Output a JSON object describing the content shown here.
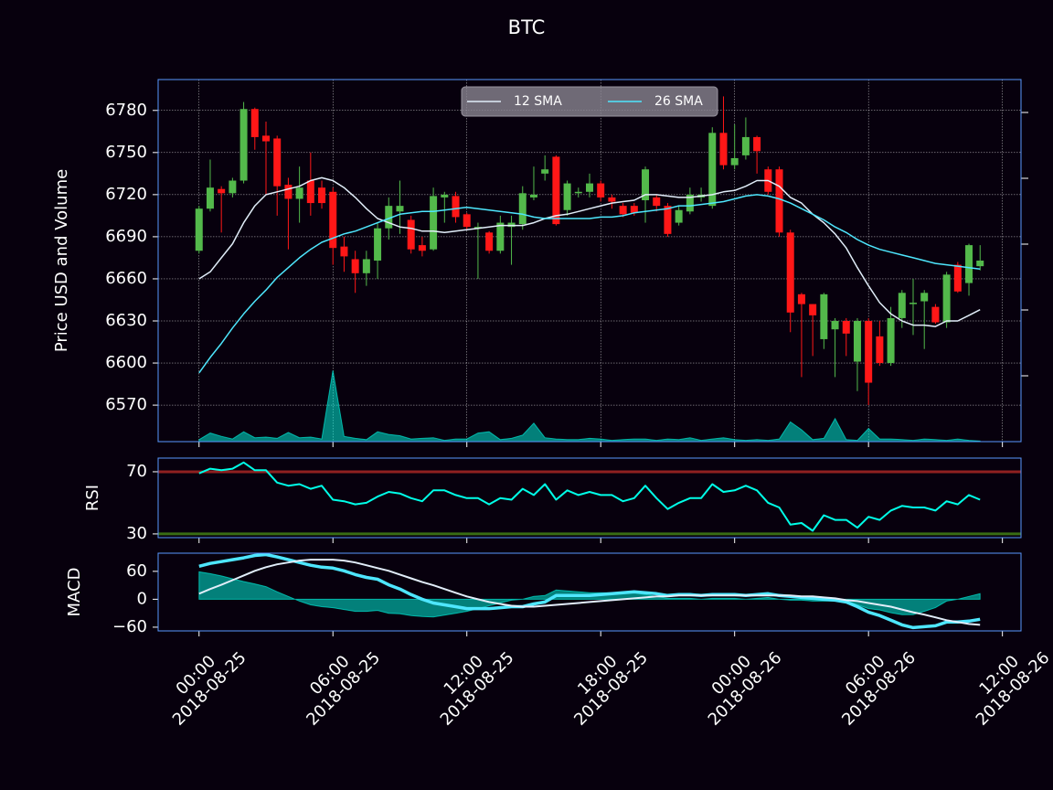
{
  "chart_data": [
    {
      "type": "candlestick",
      "title": "BTC",
      "ylabel": "Price USD and Volume",
      "x": [
        "2018-08-25 00:00",
        "2018-08-25 00:30",
        "2018-08-25 01:00",
        "2018-08-25 01:30",
        "2018-08-25 02:00",
        "2018-08-25 02:30",
        "2018-08-25 03:00",
        "2018-08-25 03:30",
        "2018-08-25 04:00",
        "2018-08-25 04:30",
        "2018-08-25 05:00",
        "2018-08-25 05:30",
        "2018-08-25 06:00",
        "2018-08-25 06:30",
        "2018-08-25 07:00",
        "2018-08-25 07:30",
        "2018-08-25 08:00",
        "2018-08-25 08:30",
        "2018-08-25 09:00",
        "2018-08-25 09:30",
        "2018-08-25 10:00",
        "2018-08-25 10:30",
        "2018-08-25 11:00",
        "2018-08-25 11:30",
        "2018-08-25 12:00",
        "2018-08-25 12:30",
        "2018-08-25 13:00",
        "2018-08-25 13:30",
        "2018-08-25 14:00",
        "2018-08-25 14:30",
        "2018-08-25 15:00",
        "2018-08-25 15:30",
        "2018-08-25 16:00",
        "2018-08-25 16:30",
        "2018-08-25 17:00",
        "2018-08-25 17:30",
        "2018-08-25 18:00",
        "2018-08-25 18:30",
        "2018-08-25 19:00",
        "2018-08-25 19:30",
        "2018-08-25 20:00",
        "2018-08-25 20:30",
        "2018-08-25 21:00",
        "2018-08-25 21:30",
        "2018-08-25 22:00",
        "2018-08-25 22:30",
        "2018-08-25 23:00",
        "2018-08-25 23:30",
        "2018-08-26 00:00",
        "2018-08-26 00:30",
        "2018-08-26 01:00",
        "2018-08-26 01:30",
        "2018-08-26 02:00",
        "2018-08-26 02:30",
        "2018-08-26 03:00",
        "2018-08-26 03:30",
        "2018-08-26 04:00",
        "2018-08-26 04:30",
        "2018-08-26 05:00",
        "2018-08-26 05:30",
        "2018-08-26 06:00",
        "2018-08-26 06:30",
        "2018-08-26 07:00",
        "2018-08-26 07:30",
        "2018-08-26 08:00",
        "2018-08-26 08:30",
        "2018-08-26 09:00",
        "2018-08-26 09:30",
        "2018-08-26 10:00",
        "2018-08-26 10:30",
        "2018-08-26 11:00"
      ],
      "xlim": [
        "2018-08-24 22:10",
        "2018-08-26 12:50"
      ],
      "xticks": [
        {
          "value": "2018-08-25 00:00",
          "label": [
            "00:00",
            "2018-08-25"
          ]
        },
        {
          "value": "2018-08-25 06:00",
          "label": [
            "06:00",
            "2018-08-25"
          ]
        },
        {
          "value": "2018-08-25 12:00",
          "label": [
            "12:00",
            "2018-08-25"
          ]
        },
        {
          "value": "2018-08-25 18:00",
          "label": [
            "18:00",
            "2018-08-25"
          ]
        },
        {
          "value": "2018-08-26 00:00",
          "label": [
            "00:00",
            "2018-08-26"
          ]
        },
        {
          "value": "2018-08-26 06:00",
          "label": [
            "06:00",
            "2018-08-26"
          ]
        },
        {
          "value": "2018-08-26 12:00",
          "label": [
            "12:00",
            "2018-08-26"
          ]
        }
      ],
      "ylim": [
        6544,
        6802
      ],
      "yticks": [
        6570,
        6600,
        6630,
        6660,
        6690,
        6720,
        6750,
        6780
      ],
      "y2lim": [
        0,
        5500
      ],
      "y2ticks": [
        1000,
        2000,
        3000,
        4000,
        5000
      ],
      "grid": true,
      "legend": "upper center",
      "candles": {
        "up_color": "#53b94b",
        "down_color": "#ff1717",
        "open": [
          6680,
          6710,
          6724,
          6721,
          6730,
          6781,
          6762,
          6760,
          6727,
          6717,
          6730,
          6725,
          6722,
          6683,
          6674,
          6664,
          6673,
          6696,
          6708,
          6702,
          6684,
          6681,
          6718,
          6719,
          6706,
          6696,
          6693,
          6680,
          6697,
          6699,
          6718,
          6735,
          6747,
          6709,
          6721,
          6722,
          6728,
          6718,
          6712,
          6712,
          6716,
          6718,
          6712,
          6700,
          6708,
          6718,
          6712,
          6764,
          6741,
          6748,
          6761,
          6738,
          6738,
          6693,
          6649,
          6642,
          6617,
          6624,
          6630,
          6601,
          6630,
          6619,
          6600,
          6632,
          6642,
          6644,
          6640,
          6629,
          6670,
          6657,
          6669
        ],
        "high": [
          6712,
          6745,
          6726,
          6732,
          6786,
          6782,
          6772,
          6762,
          6732,
          6740,
          6750,
          6730,
          6725,
          6690,
          6680,
          6680,
          6700,
          6718,
          6730,
          6705,
          6690,
          6725,
          6722,
          6722,
          6707,
          6700,
          6694,
          6705,
          6705,
          6726,
          6740,
          6748,
          6748,
          6730,
          6725,
          6735,
          6730,
          6720,
          6714,
          6714,
          6740,
          6720,
          6714,
          6712,
          6725,
          6725,
          6768,
          6790,
          6770,
          6775,
          6762,
          6740,
          6740,
          6695,
          6650,
          6642,
          6650,
          6632,
          6632,
          6632,
          6632,
          6630,
          6640,
          6652,
          6660,
          6652,
          6642,
          6665,
          6672,
          6685,
          6684
        ],
        "low": [
          6678,
          6708,
          6693,
          6718,
          6728,
          6752,
          6720,
          6705,
          6681,
          6700,
          6705,
          6710,
          6670,
          6665,
          6650,
          6655,
          6660,
          6688,
          6692,
          6678,
          6676,
          6680,
          6700,
          6700,
          6695,
          6660,
          6678,
          6678,
          6670,
          6695,
          6716,
          6730,
          6698,
          6705,
          6718,
          6718,
          6715,
          6710,
          6704,
          6705,
          6700,
          6708,
          6690,
          6698,
          6706,
          6715,
          6710,
          6738,
          6738,
          6745,
          6735,
          6720,
          6690,
          6622,
          6590,
          6605,
          6610,
          6590,
          6605,
          6580,
          6570,
          6598,
          6598,
          6625,
          6620,
          6610,
          6628,
          6625,
          6650,
          6648,
          6666
        ],
        "close": [
          6710,
          6725,
          6721,
          6730,
          6781,
          6761,
          6758,
          6726,
          6717,
          6725,
          6714,
          6714,
          6682,
          6676,
          6664,
          6674,
          6696,
          6712,
          6712,
          6681,
          6680,
          6719,
          6720,
          6704,
          6697,
          6697,
          6680,
          6700,
          6700,
          6721,
          6720,
          6738,
          6699,
          6728,
          6722,
          6728,
          6718,
          6715,
          6706,
          6707,
          6738,
          6712,
          6692,
          6709,
          6720,
          6720,
          6764,
          6741,
          6746,
          6761,
          6751,
          6722,
          6693,
          6636,
          6642,
          6634,
          6649,
          6630,
          6621,
          6630,
          6586,
          6600,
          6632,
          6650,
          6643,
          6650,
          6629,
          6663,
          6651,
          6684,
          6673
        ]
      },
      "volume": {
        "axis": "y2",
        "color": "#00ffe8",
        "values": [
          30,
          130,
          80,
          40,
          150,
          60,
          70,
          50,
          140,
          60,
          70,
          40,
          1080,
          80,
          50,
          30,
          150,
          110,
          90,
          40,
          50,
          60,
          20,
          40,
          40,
          130,
          150,
          30,
          50,
          100,
          280,
          60,
          40,
          30,
          30,
          50,
          40,
          20,
          30,
          40,
          40,
          20,
          40,
          30,
          60,
          20,
          40,
          60,
          30,
          20,
          30,
          20,
          40,
          300,
          180,
          30,
          50,
          350,
          30,
          20,
          200,
          40,
          40,
          30,
          20,
          40,
          30,
          20,
          40,
          20,
          10
        ]
      },
      "series": [
        {
          "name": "12 SMA",
          "color": "#e1edf9",
          "values": [
            6660,
            6665,
            6675,
            6685,
            6700,
            6712,
            6720,
            6722,
            6724,
            6726,
            6730,
            6732,
            6730,
            6725,
            6718,
            6710,
            6703,
            6700,
            6697,
            6696,
            6694,
            6694,
            6693,
            6694,
            6695,
            6696,
            6697,
            6698,
            6698,
            6698,
            6700,
            6703,
            6705,
            6706,
            6708,
            6710,
            6712,
            6714,
            6715,
            6716,
            6720,
            6720,
            6719,
            6718,
            6718,
            6719,
            6720,
            6722,
            6723,
            6726,
            6730,
            6730,
            6726,
            6718,
            6714,
            6706,
            6700,
            6692,
            6682,
            6668,
            6655,
            6643,
            6635,
            6630,
            6627,
            6627,
            6626,
            6630,
            6630,
            6634,
            6638
          ]
        },
        {
          "name": "26 SMA",
          "color": "#4ee6fd",
          "values": [
            6593,
            6604,
            6614,
            6625,
            6635,
            6644,
            6652,
            6661,
            6668,
            6675,
            6681,
            6686,
            6689,
            6692,
            6694,
            6697,
            6700,
            6703,
            6706,
            6707,
            6708,
            6708,
            6709,
            6710,
            6711,
            6710,
            6709,
            6708,
            6707,
            6706,
            6704,
            6703,
            6703,
            6703,
            6703,
            6703,
            6704,
            6704,
            6705,
            6707,
            6708,
            6709,
            6710,
            6712,
            6712,
            6713,
            6714,
            6715,
            6717,
            6719,
            6720,
            6719,
            6717,
            6714,
            6710,
            6706,
            6702,
            6697,
            6693,
            6688,
            6684,
            6681,
            6679,
            6677,
            6675,
            6673,
            6671,
            6670,
            6669,
            6668,
            6667
          ]
        }
      ]
    },
    {
      "type": "line",
      "ylabel": "RSI",
      "ylim": [
        27.6,
        78.8
      ],
      "yticks": [
        30,
        70
      ],
      "hlines": [
        {
          "value": 70,
          "color": "#8f2020"
        },
        {
          "value": 30,
          "color": "#386d13"
        }
      ],
      "series": [
        {
          "color": "#00ffe8",
          "values": [
            69,
            72,
            71,
            72,
            76,
            71,
            71,
            63,
            61,
            62,
            59,
            61,
            52,
            51,
            49,
            50,
            54,
            57,
            56,
            53,
            51,
            58,
            58,
            55,
            53,
            53,
            49,
            53,
            52,
            59,
            55,
            62,
            52,
            58,
            55,
            57,
            55,
            55,
            51,
            53,
            61,
            53,
            46,
            50,
            53,
            53,
            62,
            57,
            58,
            61,
            58,
            50,
            47,
            36,
            37,
            32,
            42,
            39,
            39,
            34,
            41,
            39,
            45,
            48,
            47,
            47,
            45,
            51,
            49,
            55,
            52
          ]
        }
      ]
    },
    {
      "type": "line",
      "ylabel": "MACD",
      "ylim": [
        -68,
        99
      ],
      "yticks": [
        60,
        0,
        {
          "value": -60,
          "label": "−60"
        }
      ],
      "series": [
        {
          "color": "#00ffe8",
          "fill": true,
          "values": [
            59,
            55,
            50,
            44,
            38,
            33,
            27,
            16,
            6,
            -4,
            -12,
            -16,
            -18,
            -22,
            -26,
            -26,
            -24,
            -30,
            -31,
            -35,
            -37,
            -38,
            -34,
            -30,
            -26,
            -20,
            -14,
            -8,
            -2,
            0,
            6,
            8,
            20,
            18,
            16,
            14,
            14,
            14,
            14,
            14,
            10,
            6,
            2,
            2,
            2,
            0,
            2,
            2,
            2,
            0,
            2,
            4,
            0,
            -2,
            -2,
            -4,
            -4,
            -4,
            -4,
            -12,
            -20,
            -23,
            -29,
            -33,
            -33,
            -26,
            -18,
            -4,
            0,
            6,
            12
          ]
        },
        {
          "color": "#4ee6fd",
          "values": [
            71,
            77,
            81,
            85,
            89,
            94,
            96,
            91,
            85,
            79,
            73,
            69,
            67,
            61,
            53,
            47,
            43,
            31,
            22,
            10,
            0,
            -8,
            -12,
            -16,
            -20,
            -20,
            -20,
            -18,
            -16,
            -16,
            -10,
            -6,
            8,
            8,
            8,
            8,
            10,
            12,
            14,
            16,
            14,
            12,
            8,
            10,
            10,
            8,
            10,
            10,
            10,
            8,
            10,
            12,
            8,
            6,
            4,
            2,
            0,
            -2,
            -6,
            -16,
            -28,
            -35,
            -45,
            -55,
            -61,
            -59,
            -57,
            -49,
            -49,
            -47,
            -43
          ]
        },
        {
          "color": "#e1edf9",
          "values": [
            12,
            22,
            31,
            41,
            51,
            61,
            69,
            75,
            79,
            83,
            85,
            85,
            85,
            83,
            79,
            73,
            67,
            61,
            53,
            45,
            37,
            30,
            22,
            14,
            6,
            0,
            -6,
            -10,
            -14,
            -16,
            -16,
            -14,
            -12,
            -10,
            -8,
            -6,
            -4,
            -2,
            0,
            2,
            4,
            6,
            6,
            8,
            8,
            8,
            8,
            8,
            8,
            8,
            8,
            8,
            8,
            8,
            6,
            6,
            4,
            2,
            -2,
            -4,
            -8,
            -12,
            -16,
            -22,
            -28,
            -33,
            -39,
            -45,
            -49,
            -53,
            -55
          ]
        }
      ]
    }
  ]
}
